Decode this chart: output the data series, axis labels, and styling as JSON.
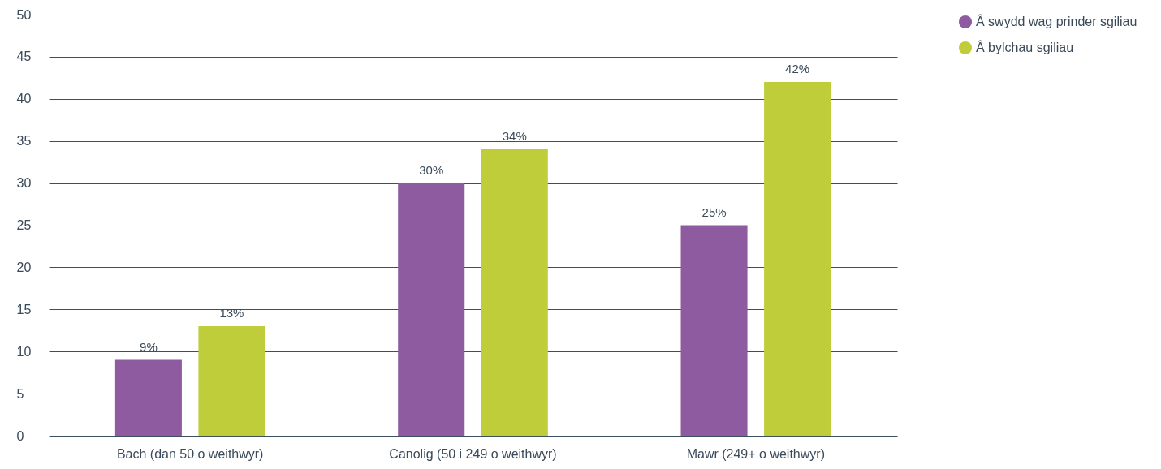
{
  "chart_data": {
    "type": "bar",
    "categories": [
      "Bach (dan 50 o weithwyr)",
      "Canolig (50 i 249 o weithwyr)",
      "Mawr (249+ o weithwyr)"
    ],
    "series": [
      {
        "name": "Â swydd wag prinder sgiliau",
        "color": "#8e5ba0",
        "values": [
          9,
          30,
          25
        ],
        "value_labels": [
          "9%",
          "30%",
          "25%"
        ]
      },
      {
        "name": "Â bylchau sgiliau",
        "color": "#bfcd3a",
        "values": [
          13,
          34,
          42
        ],
        "value_labels": [
          "13%",
          "34%",
          "42%"
        ]
      }
    ],
    "ylim": [
      0,
      50
    ],
    "yticks": [
      0,
      5,
      10,
      15,
      20,
      25,
      30,
      35,
      40,
      45,
      50
    ],
    "grid": "y",
    "legend": "top right"
  }
}
